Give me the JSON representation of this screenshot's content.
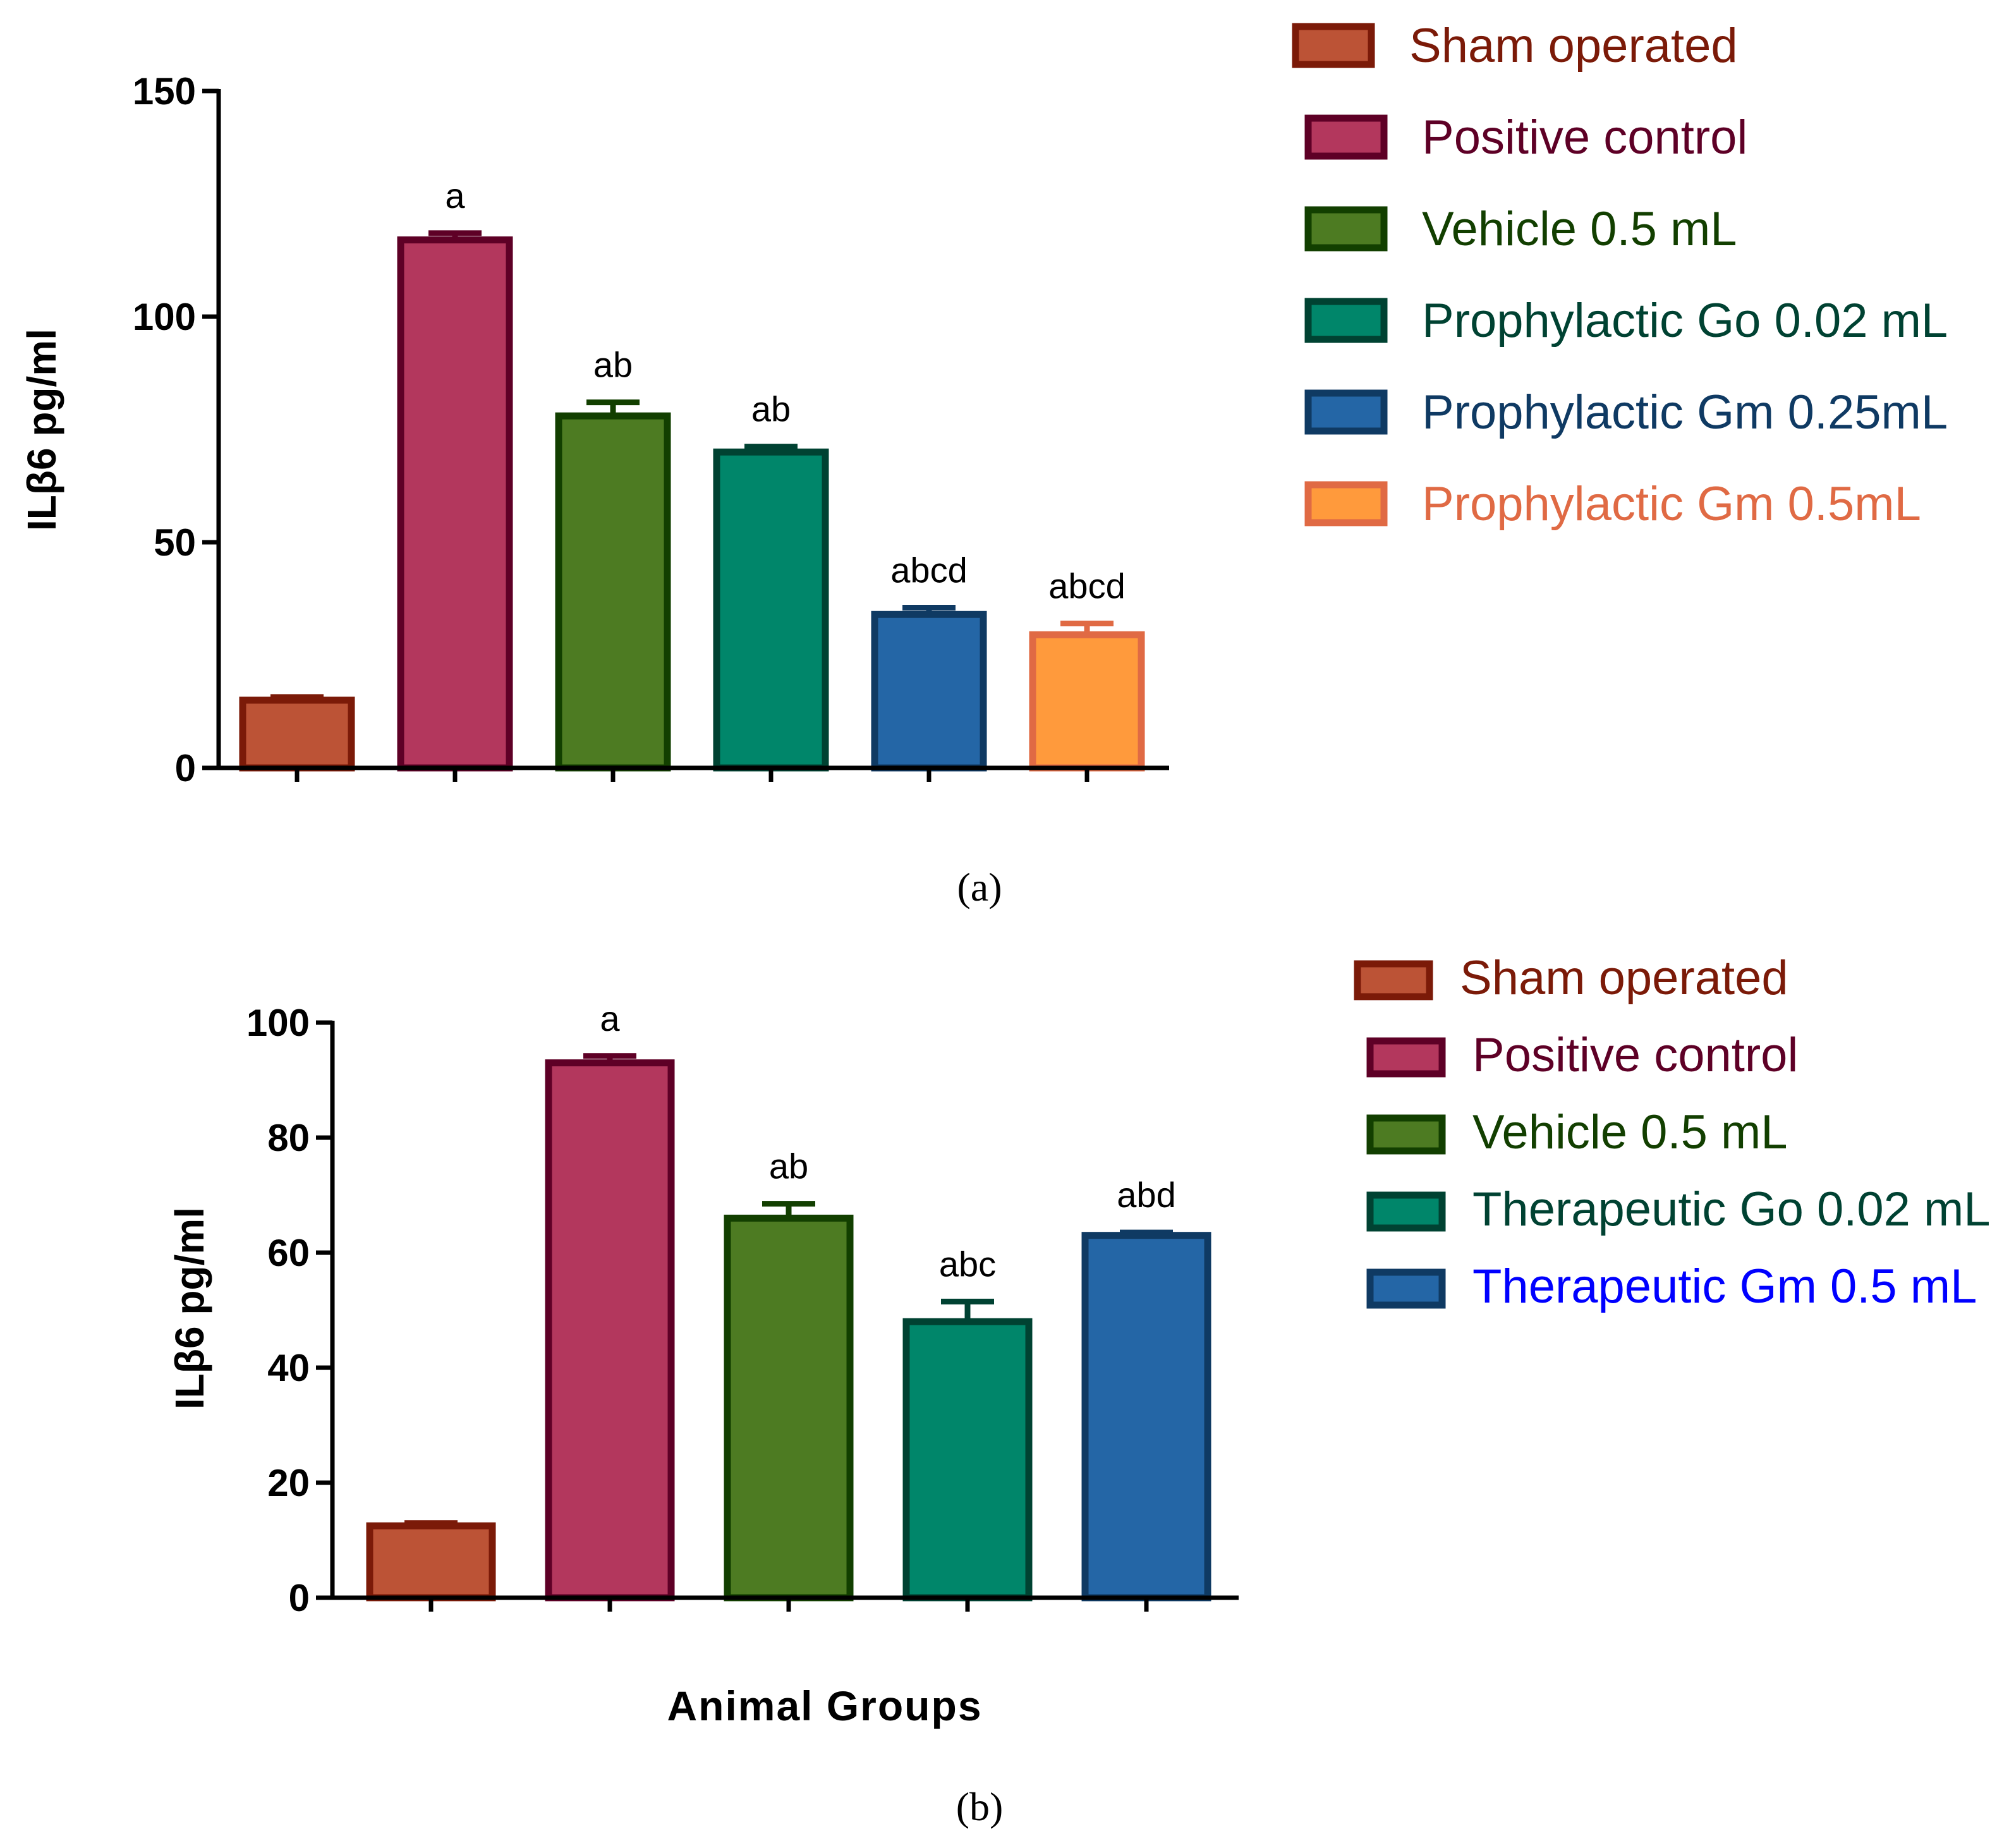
{
  "chart_data": [
    {
      "type": "bar",
      "panel_label": "(a)",
      "ylabel": "ILβ6 pg/ml",
      "xlabel": "",
      "ylim": [
        0,
        150
      ],
      "yticks": [
        0,
        50,
        100,
        150
      ],
      "categories": [
        "Sham operated",
        "Positive control",
        "Vehicle 0.5 mL",
        "Prophylactic Go 0.02 mL",
        "Prophylactic Gm 0.25mL",
        "Prophylactic Gm 0.5mL"
      ],
      "values": [
        15,
        117,
        78,
        70,
        34,
        29.5
      ],
      "errors": [
        0.7,
        1.5,
        3,
        1.2,
        1.5,
        2.5
      ],
      "annotations": [
        "",
        "a",
        "ab",
        "ab",
        "abcd",
        "abcd"
      ],
      "fill_colors": [
        "#BC5336",
        "#B3375D",
        "#4D7B22",
        "#00866A",
        "#2466A6",
        "#FF9A3C"
      ],
      "edge_colors": [
        "#7B1A08",
        "#5E0026",
        "#123F00",
        "#004232",
        "#0F3A63",
        "#E06A44"
      ],
      "legend_text_colors": [
        "#7B1A08",
        "#5E0026",
        "#123F00",
        "#004232",
        "#0F3A63",
        "#E06A44"
      ],
      "legend_position": "right",
      "grid": false
    },
    {
      "type": "bar",
      "panel_label": "(b)",
      "ylabel": "ILβ6 pg/ml",
      "xlabel": "Animal Groups",
      "ylim": [
        0,
        100
      ],
      "yticks": [
        0,
        20,
        40,
        60,
        80,
        100
      ],
      "categories": [
        "Sham operated",
        "Positive control",
        "Vehicle 0.5 mL",
        "Therapeutic Go 0.02 mL",
        "Therapeutic Gm 0.5 mL"
      ],
      "values": [
        12.5,
        93,
        66,
        48,
        63
      ],
      "errors": [
        0.5,
        1.2,
        2.5,
        3.5,
        0.5
      ],
      "annotations": [
        "",
        "a",
        "ab",
        "abc",
        "abd"
      ],
      "fill_colors": [
        "#BC5336",
        "#B3375D",
        "#4D7B22",
        "#00866A",
        "#2466A6"
      ],
      "edge_colors": [
        "#7B1A08",
        "#5E0026",
        "#123F00",
        "#004232",
        "#0F3A63"
      ],
      "legend_text_colors": [
        "#7B1A08",
        "#5E0026",
        "#123F00",
        "#004232",
        "#0000FF"
      ],
      "legend_position": "right",
      "grid": false
    }
  ]
}
